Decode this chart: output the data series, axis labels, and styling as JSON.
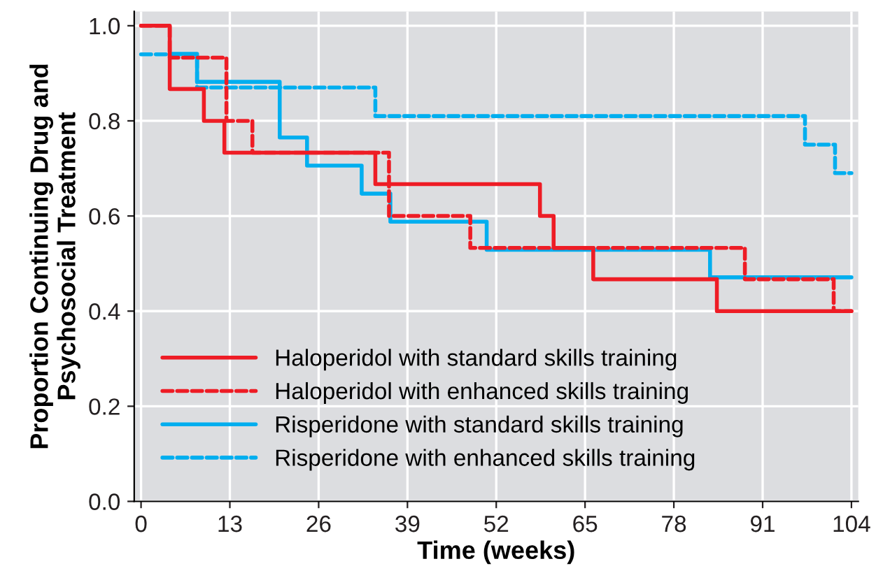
{
  "chart_data": {
    "type": "step",
    "xlabel": "Time (weeks)",
    "ylabel": "Proportion Continuing Drug and\nPsychosocial Treatment",
    "series": [
      {
        "name": "Haloperidol with standard skills training",
        "color": "#ee1c25",
        "line_style": "solid",
        "x": [
          0,
          4.2,
          9.2,
          12.2,
          34.3,
          58.4,
          60.4,
          66.2,
          84.3,
          104
        ],
        "values": [
          1.0,
          0.867,
          0.8,
          0.733,
          0.667,
          0.6,
          0.533,
          0.467,
          0.4,
          0.4
        ]
      },
      {
        "name": "Haloperidol with enhanced skills training",
        "color": "#ee1c25",
        "line_style": "dashed",
        "x": [
          0,
          4.2,
          12.5,
          16.3,
          36.3,
          48.2,
          88.4,
          101.4,
          104
        ],
        "values": [
          1.0,
          0.933,
          0.8,
          0.733,
          0.6,
          0.533,
          0.467,
          0.4,
          0.4
        ]
      },
      {
        "name": "Risperidone with standard skills training",
        "color": "#00aeef",
        "line_style": "solid",
        "x": [
          4.2,
          8.2,
          20.3,
          24.3,
          32.3,
          36.5,
          50.6,
          83.3,
          104
        ],
        "values": [
          0.941,
          0.882,
          0.765,
          0.706,
          0.647,
          0.588,
          0.529,
          0.471,
          0.471
        ]
      },
      {
        "name": "Risperidone with enhanced skills training",
        "color": "#00aeef",
        "line_style": "dashed",
        "x": [
          0,
          8.2,
          34.3,
          97.2,
          101.6,
          104
        ],
        "values": [
          0.94,
          0.87,
          0.81,
          0.75,
          0.69,
          0.69
        ]
      }
    ],
    "xlim": [
      -1,
      105
    ],
    "ylim": [
      0,
      1.03
    ],
    "xticks": [
      0,
      13,
      26,
      39,
      52,
      65,
      78,
      91,
      104
    ],
    "yticks": [
      {
        "value": 0,
        "label": "0.0"
      },
      {
        "value": 0.2,
        "label": "0.2"
      },
      {
        "value": 0.4,
        "label": "0.4"
      },
      {
        "value": 0.6,
        "label": "0.6"
      },
      {
        "value": 0.8,
        "label": "0.8"
      },
      {
        "value": 1.0,
        "label": "1.0"
      }
    ],
    "grid": true,
    "legend": "bottom left"
  }
}
